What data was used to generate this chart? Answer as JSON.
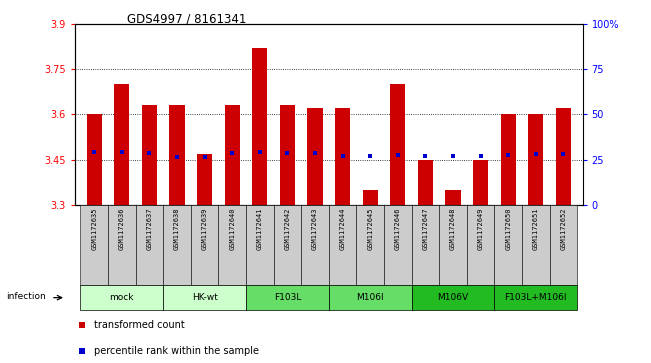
{
  "title": "GDS4997 / 8161341",
  "samples": [
    "GSM1172635",
    "GSM1172636",
    "GSM1172637",
    "GSM1172638",
    "GSM1172639",
    "GSM1172640",
    "GSM1172641",
    "GSM1172642",
    "GSM1172643",
    "GSM1172644",
    "GSM1172645",
    "GSM1172646",
    "GSM1172647",
    "GSM1172648",
    "GSM1172649",
    "GSM1172650",
    "GSM1172651",
    "GSM1172652"
  ],
  "bar_values": [
    3.6,
    3.7,
    3.63,
    3.63,
    3.47,
    3.63,
    3.82,
    3.63,
    3.62,
    3.62,
    3.35,
    3.7,
    3.45,
    3.35,
    3.45,
    3.6,
    3.6,
    3.62
  ],
  "dot_values": [
    3.475,
    3.475,
    3.472,
    3.46,
    3.458,
    3.473,
    3.475,
    3.472,
    3.472,
    3.462,
    3.462,
    3.465,
    3.462,
    3.462,
    3.462,
    3.465,
    3.468,
    3.468
  ],
  "ymin": 3.3,
  "ymax": 3.9,
  "yticks": [
    3.3,
    3.45,
    3.6,
    3.75,
    3.9
  ],
  "ytick_labels": [
    "3.3",
    "3.45",
    "3.6",
    "3.75",
    "3.9"
  ],
  "y2min": 0,
  "y2max": 100,
  "y2ticks": [
    0,
    25,
    50,
    75,
    100
  ],
  "y2tick_labels": [
    "0",
    "25",
    "50",
    "75",
    "100%"
  ],
  "bar_color": "#cc0000",
  "dot_color": "#0000cc",
  "groups": [
    {
      "label": "mock",
      "start": 0,
      "end": 2,
      "color": "#ccffcc"
    },
    {
      "label": "HK-wt",
      "start": 3,
      "end": 5,
      "color": "#ccffcc"
    },
    {
      "label": "F103L",
      "start": 6,
      "end": 8,
      "color": "#66dd66"
    },
    {
      "label": "M106I",
      "start": 9,
      "end": 11,
      "color": "#66dd66"
    },
    {
      "label": "M106V",
      "start": 12,
      "end": 14,
      "color": "#22bb22"
    },
    {
      "label": "F103L+M106I",
      "start": 15,
      "end": 17,
      "color": "#22bb22"
    }
  ],
  "infection_label": "infection",
  "legend": [
    {
      "label": "transformed count",
      "color": "#cc0000",
      "marker": "s"
    },
    {
      "label": "percentile rank within the sample",
      "color": "#0000cc",
      "marker": "s"
    }
  ],
  "bar_width": 0.55,
  "sample_box_color": "#cccccc",
  "grid_color": "#000000",
  "grid_linestyle": ":",
  "grid_linewidth": 0.6
}
